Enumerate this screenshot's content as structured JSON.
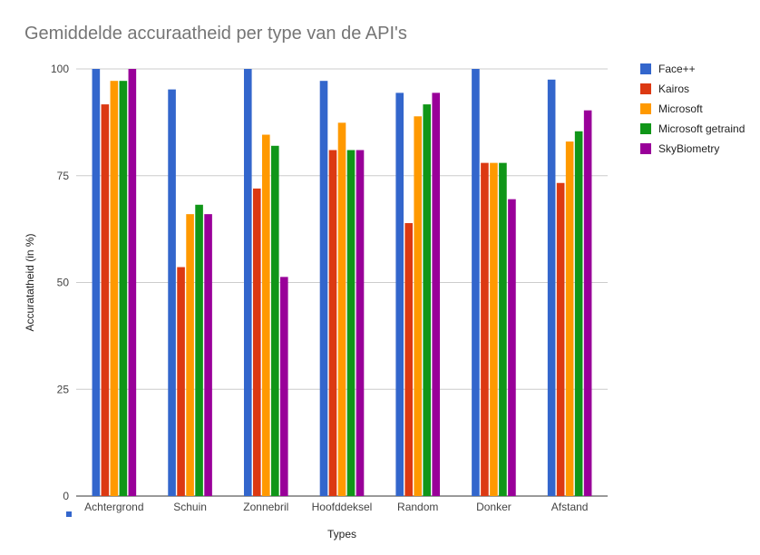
{
  "chart_data": {
    "type": "bar",
    "title": "Gemiddelde accuraatheid per type van de API's",
    "xlabel": "Types",
    "ylabel": "Accuratatheid (in %)",
    "ylim": [
      0,
      100
    ],
    "yticks": [
      0,
      25,
      50,
      75,
      100
    ],
    "grid": true,
    "legend_position": "right",
    "categories": [
      "Achtergrond",
      "Schuin",
      "Zonnebril",
      "Hoofddeksel",
      "Random",
      "Donker",
      "Afstand"
    ],
    "series": [
      {
        "name": "Face++",
        "color": "#3366cc",
        "values": [
          100,
          95.2,
          100,
          97.2,
          94.4,
          100,
          97.5
        ]
      },
      {
        "name": "Kairos",
        "color": "#dc3912",
        "values": [
          91.7,
          53.6,
          72,
          81,
          63.9,
          78,
          73.3
        ]
      },
      {
        "name": "Microsoft",
        "color": "#ff9900",
        "values": [
          97.2,
          66,
          84.6,
          87.4,
          88.9,
          78,
          83
        ]
      },
      {
        "name": "Microsoft getraind",
        "color": "#109618",
        "values": [
          97.2,
          68.2,
          82,
          81,
          91.7,
          78,
          85.4
        ]
      },
      {
        "name": "SkyBiometry",
        "color": "#990099",
        "values": [
          100,
          66,
          51.3,
          81,
          94.4,
          69.5,
          90.3
        ]
      }
    ]
  }
}
